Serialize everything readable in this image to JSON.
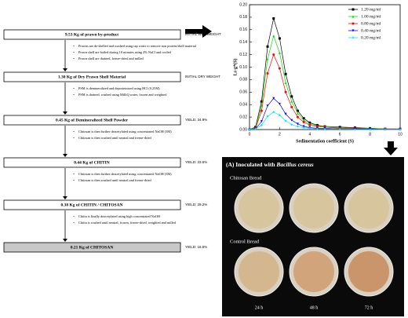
{
  "chart_data": {
    "type": "line",
    "x_label": "Sedimentation coefficient (S)",
    "y_label": "Ls-g*(S)",
    "x": [
      0,
      0.4,
      0.8,
      1.2,
      1.6,
      2.0,
      2.4,
      2.8,
      3.2,
      3.6,
      4.0,
      4.5,
      5,
      6,
      7,
      8,
      9,
      10
    ],
    "series": [
      {
        "name": "1.20 mg/ml",
        "color": "#000000",
        "marker": "square",
        "values": [
          0,
          0.004,
          0.045,
          0.133,
          0.178,
          0.146,
          0.089,
          0.053,
          0.03,
          0.018,
          0.011,
          0.007,
          0.005,
          0.004,
          0.003,
          0.002,
          0.001,
          0.001
        ]
      },
      {
        "name": "1.00 mg/ml",
        "color": "#00dd00",
        "marker": "triangle-up",
        "values": [
          0,
          0.003,
          0.038,
          0.113,
          0.15,
          0.123,
          0.075,
          0.045,
          0.026,
          0.015,
          0.009,
          0.006,
          0.005,
          0.003,
          0.002,
          0.002,
          0.001,
          0.001
        ]
      },
      {
        "name": "0.80 mg/ml",
        "color": "#ff0000",
        "marker": "circle",
        "values": [
          0,
          0.002,
          0.03,
          0.09,
          0.12,
          0.098,
          0.06,
          0.036,
          0.02,
          0.012,
          0.007,
          0.005,
          0.004,
          0.002,
          0.002,
          0.001,
          0.001,
          0.001
        ]
      },
      {
        "name": "0.40 mg/ml",
        "color": "#0000ff",
        "marker": "triangle-down",
        "values": [
          0,
          0.001,
          0.013,
          0.038,
          0.05,
          0.041,
          0.025,
          0.015,
          0.009,
          0.005,
          0.003,
          0.002,
          0.002,
          0.001,
          0.001,
          0.001,
          0,
          0
        ]
      },
      {
        "name": "0.20 mg/ml",
        "color": "#00e5ff",
        "marker": "diamond",
        "values": [
          0,
          0.001,
          0.007,
          0.021,
          0.028,
          0.023,
          0.014,
          0.008,
          0.005,
          0.003,
          0.002,
          0.001,
          0.001,
          0.001,
          0,
          0,
          0,
          0
        ]
      }
    ],
    "xlim": [
      0,
      10
    ],
    "xticks": [
      0,
      2,
      4,
      6,
      8,
      10
    ],
    "ylim": [
      0,
      0.2
    ],
    "yticks": [
      {
        "value": 0,
        "label": "0.00"
      },
      {
        "value": 0.02,
        "label": "0.02"
      },
      {
        "value": 0.04,
        "label": "0.04"
      },
      {
        "value": 0.06,
        "label": "0.06"
      },
      {
        "value": 0.08,
        "label": "0.08"
      },
      {
        "value": 0.1,
        "label": "0.10"
      },
      {
        "value": 0.12,
        "label": "0.12"
      },
      {
        "value": 0.14,
        "label": "0.14"
      },
      {
        "value": 0.16,
        "label": "0.16"
      },
      {
        "value": 0.18,
        "label": "0.18"
      },
      {
        "value": 0.2,
        "label": "0.20"
      }
    ],
    "legend": "upper-right"
  },
  "flowchart": {
    "steps": [
      {
        "box": "9.53 Kg of prawn by-product",
        "note": "INITIAL WET-WEIGHT",
        "bullets": [
          "Prawns are de-shelled and washed using tap water to remove non protein/shell material",
          "Prawn shell are boiled during 10 minutes using 4% NaCl and cooled",
          "Prawn shell are drained, freeze-dried and milled"
        ]
      },
      {
        "box": "1.30 Kg of Dry Prawn Shell Material",
        "note": "INITIAL DRY WEIGHT",
        "bullets": [
          "PSM is demineralized and deproteinized using HCl (0.25M)",
          "PSM is drained, washed using MilliQ water, frozen and weighted"
        ]
      },
      {
        "box": "0.45 Kg of Demineralized Shell Powder",
        "note": "YIELD: 34.9%",
        "bullets": [
          "Chitosan is then further deacetylated using concentrated NaOH (3M)",
          "Chitosan is then washed until neutral and freeze-dried"
        ]
      },
      {
        "box": "0.44 Kg of CHITIN",
        "note": "YIELD: 33.5%",
        "bullets": [
          "Chitosan is then further deacetylated using concentrated NaOH (3M)",
          "Chitosan is then washed until neutral and freeze-dried"
        ]
      },
      {
        "box": "0.38 Kg of CHITIN / CHITOSAN",
        "note": "YIELD: 29.2%",
        "bullets": [
          "Chitin is finally deacetylated using high concentrated NaOH",
          "Chitin is washed until neutral, frozen, freeze-dried, weighted and milled"
        ]
      },
      {
        "box": "0.21 Kg of CHITOSAN",
        "note": "YIELD: 16.5%",
        "bullets": []
      }
    ]
  },
  "photo_panel": {
    "title": "(A) Inoculated with",
    "organism": "Bacillus cereus",
    "rows": [
      "Chitosan Bread",
      "Control Bread"
    ],
    "times": [
      "24 h",
      "48 h",
      "72 h"
    ]
  }
}
